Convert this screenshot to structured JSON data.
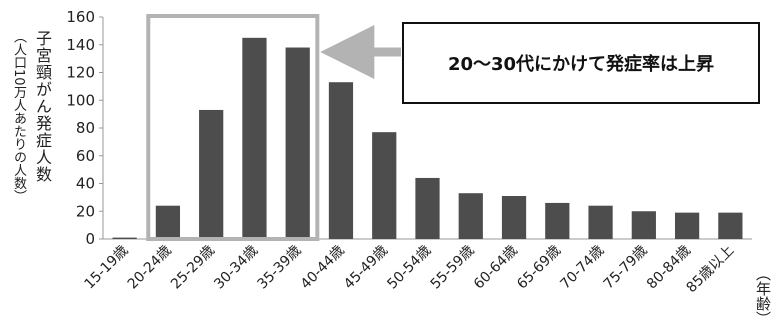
{
  "chart_data": {
    "type": "bar",
    "ylabel": "子宮頸がん発症人数",
    "ylabel_sub": "（人口10万人あたりの人数）",
    "xlabel": "（年齢）",
    "categories": [
      "15-19歳",
      "20-24歳",
      "25-29歳",
      "30-34歳",
      "35-39歳",
      "40-44歳",
      "45-49歳",
      "50-54歳",
      "55-59歳",
      "60-64歳",
      "65-69歳",
      "70-74歳",
      "75-79歳",
      "80-84歳",
      "85歳以上"
    ],
    "values": [
      1,
      24,
      93,
      145,
      138,
      113,
      77,
      44,
      33,
      31,
      26,
      24,
      20,
      19,
      19
    ],
    "ylim": [
      0,
      160
    ],
    "yticks": [
      0,
      20,
      40,
      60,
      80,
      100,
      120,
      140,
      160
    ],
    "grid": false,
    "bar_color": "#4d4d4d",
    "highlight": {
      "categories": [
        "20-24歳",
        "25-29歳",
        "30-34歳",
        "35-39歳"
      ],
      "color": "#b3b3b3"
    },
    "annotation": "20～30代にかけて発症率は上昇"
  }
}
